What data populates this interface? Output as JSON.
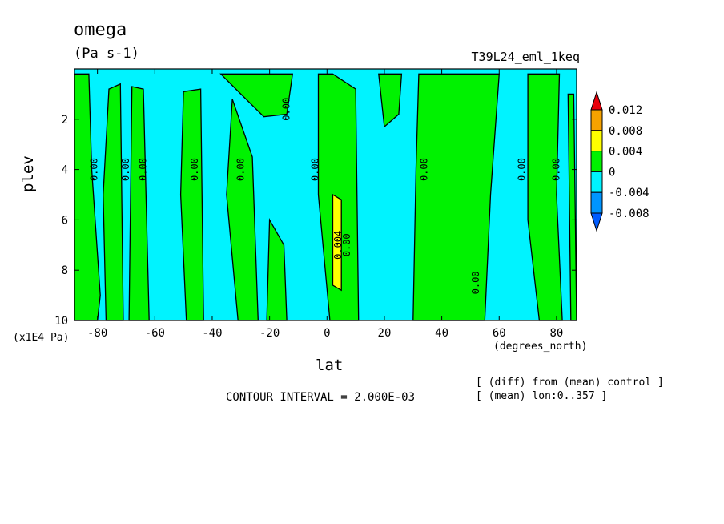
{
  "header": {
    "title": "omega",
    "units": "(Pa s-1)",
    "run_name": "T39L24_eml_1keq"
  },
  "footer": {
    "contour_interval": "CONTOUR INTERVAL = 2.000E-03",
    "note_diff": "[ (diff) from (mean) control ]",
    "note_mean": "[ (mean) lon:0..357 ]"
  },
  "chart_data": {
    "type": "heatmap",
    "title": "omega",
    "xlabel": "lat",
    "xunit": "(degrees_north)",
    "ylabel": "plev",
    "yunit": "(x1E4 Pa)",
    "xlim": [
      -88,
      87
    ],
    "ylim": [
      0,
      10
    ],
    "y_inverted": true,
    "x_ticks": [
      -80,
      -60,
      -40,
      -20,
      0,
      20,
      40,
      60,
      80
    ],
    "y_ticks": [
      2,
      4,
      6,
      8,
      10
    ],
    "contour_labels": [
      {
        "text": "0.00",
        "x": -80,
        "y": 4
      },
      {
        "text": "0.00",
        "x": -69,
        "y": 4
      },
      {
        "text": "0.00",
        "x": -63,
        "y": 4
      },
      {
        "text": "0.00",
        "x": -45,
        "y": 4
      },
      {
        "text": "0.00",
        "x": -29,
        "y": 4
      },
      {
        "text": "0.00",
        "x": -13,
        "y": 1.6
      },
      {
        "text": "0.00",
        "x": -3,
        "y": 4
      },
      {
        "text": "0.004",
        "x": 5,
        "y": 7
      },
      {
        "text": "0.00",
        "x": 8,
        "y": 7
      },
      {
        "text": "0.00",
        "x": 35,
        "y": 4
      },
      {
        "text": "0.00",
        "x": 53,
        "y": 8.5
      },
      {
        "text": "0.00",
        "x": 69,
        "y": 4
      },
      {
        "text": "0.00",
        "x": 81,
        "y": 4
      }
    ],
    "colorbar": {
      "levels": [
        "0.012",
        "0.008",
        "0.004",
        "0",
        "-0.004",
        "-0.008"
      ],
      "colors": [
        "#e8000b",
        "#f6a200",
        "#ffff00",
        "#00f200",
        "#00f3ff",
        "#0095ff",
        "#005cff"
      ]
    },
    "regions": [
      {
        "level": "0..0.004",
        "color": "#00f200",
        "path": [
          [
            -88,
            0.2
          ],
          [
            -83,
            0.2
          ],
          [
            -82,
            4
          ],
          [
            -79,
            9
          ],
          [
            -80,
            10
          ],
          [
            -88,
            10
          ]
        ]
      },
      {
        "level": "0..0.004",
        "color": "#00f200",
        "path": [
          [
            -76,
            0.8
          ],
          [
            -72,
            0.6
          ],
          [
            -71,
            10
          ],
          [
            -77,
            10
          ],
          [
            -78,
            5
          ]
        ]
      },
      {
        "level": "0..0.004",
        "color": "#00f200",
        "path": [
          [
            -68,
            0.7
          ],
          [
            -64,
            0.8
          ],
          [
            -62,
            10
          ],
          [
            -69,
            10
          ]
        ]
      },
      {
        "level": "0..0.004",
        "color": "#00f200",
        "path": [
          [
            -50,
            0.9
          ],
          [
            -44,
            0.8
          ],
          [
            -43,
            10
          ],
          [
            -49,
            10
          ],
          [
            -51,
            5
          ]
        ]
      },
      {
        "level": "0..0.004",
        "color": "#00f200",
        "path": [
          [
            -33,
            1.2
          ],
          [
            -26,
            3.5
          ],
          [
            -24,
            10
          ],
          [
            -31,
            10
          ],
          [
            -35,
            5
          ]
        ]
      },
      {
        "level": "0..0.004",
        "color": "#00f200",
        "path": [
          [
            -37,
            0.2
          ],
          [
            -12,
            0.2
          ],
          [
            -14,
            1.8
          ],
          [
            -22,
            1.9
          ],
          [
            -30,
            1.0
          ]
        ]
      },
      {
        "level": "0..0.004",
        "color": "#00f200",
        "path": [
          [
            -20,
            6
          ],
          [
            -15,
            7
          ],
          [
            -14,
            10
          ],
          [
            -21,
            10
          ]
        ]
      },
      {
        "level": "0..0.004",
        "color": "#00f200",
        "path": [
          [
            -3,
            0.2
          ],
          [
            2,
            0.2
          ],
          [
            10,
            0.8
          ],
          [
            11,
            10
          ],
          [
            1,
            10
          ],
          [
            -3,
            5
          ]
        ]
      },
      {
        "level": "0..0.004",
        "color": "#00f200",
        "path": [
          [
            18,
            0.2
          ],
          [
            26,
            0.2
          ],
          [
            25,
            1.8
          ],
          [
            20,
            2.3
          ]
        ]
      },
      {
        "level": "0..0.004",
        "color": "#00f200",
        "path": [
          [
            32,
            0.2
          ],
          [
            60,
            0.2
          ],
          [
            57,
            5
          ],
          [
            55,
            10
          ],
          [
            30,
            10
          ],
          [
            31,
            4
          ]
        ]
      },
      {
        "level": "0..0.004",
        "color": "#00f200",
        "path": [
          [
            70,
            0.2
          ],
          [
            81,
            0.2
          ],
          [
            80,
            5
          ],
          [
            82,
            10
          ],
          [
            74,
            10
          ],
          [
            70,
            6
          ]
        ]
      },
      {
        "level": "0..0.004",
        "color": "#00f200",
        "path": [
          [
            84,
            1
          ],
          [
            86,
            1
          ],
          [
            87,
            10
          ],
          [
            85,
            10
          ]
        ]
      },
      {
        "level": "0.004..0.008",
        "color": "#ffff00",
        "path": [
          [
            2,
            5.0
          ],
          [
            5,
            5.2
          ],
          [
            5,
            8.8
          ],
          [
            2,
            8.6
          ]
        ]
      }
    ]
  }
}
